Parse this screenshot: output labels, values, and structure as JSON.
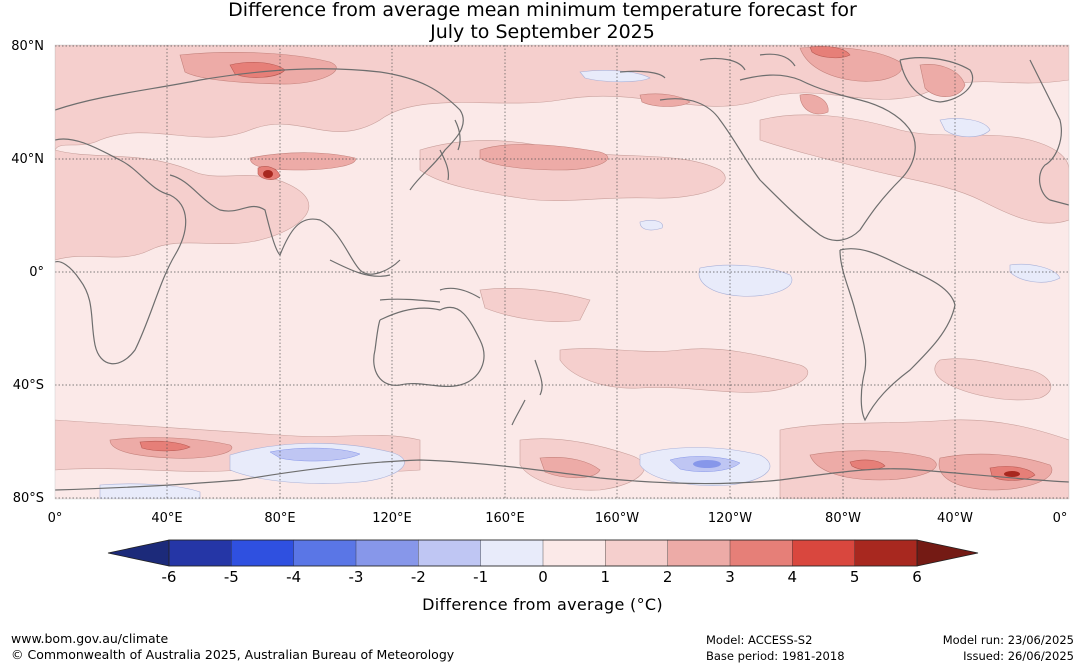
{
  "title": {
    "line1": "Difference from average mean minimum temperature forecast for",
    "line2": "July to September 2025"
  },
  "map": {
    "latitude_labels": [
      "80°N",
      "40°N",
      "0°",
      "40°S",
      "80°S"
    ],
    "longitude_labels": [
      "0°",
      "40°E",
      "80°E",
      "120°E",
      "160°E",
      "160°W",
      "120°W",
      "80°W",
      "40°W",
      "0°"
    ],
    "projection_center": "180°",
    "dominant_anomaly_bin": "0 to 1",
    "grid": "dotted lines every 40°"
  },
  "colorbar": {
    "title": "Difference from average (°C)",
    "tick_labels": [
      "-6",
      "-5",
      "-4",
      "-3",
      "-2",
      "-1",
      "0",
      "1",
      "2",
      "3",
      "4",
      "5",
      "6"
    ],
    "under_color": "#1c2a7a",
    "over_color": "#741a14",
    "bin_colors": [
      "#2536a6",
      "#2f50e0",
      "#5a76e6",
      "#8797ea",
      "#bfc6f3",
      "#e8ebfa",
      "#fbe9e8",
      "#f5cfcd",
      "#edaba7",
      "#e67f78",
      "#d9473e",
      "#a8281f"
    ]
  },
  "footer": {
    "url": "www.bom.gov.au/climate",
    "copyright": "© Commonwealth of Australia 2025, Australian Bureau of Meteorology",
    "model": "Model: ACCESS-S2",
    "base_period": "Base period: 1981-2018",
    "model_run": "Model run: 23/06/2025",
    "issued": "Issued: 26/06/2025"
  }
}
